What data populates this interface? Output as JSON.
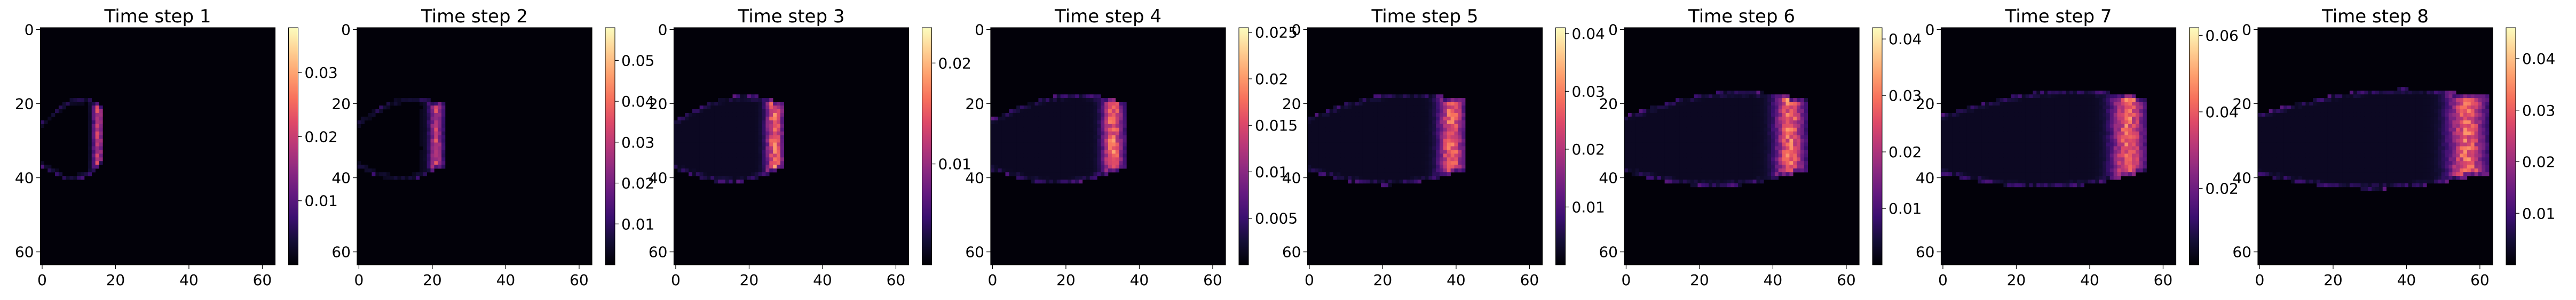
{
  "chart_data": [
    {
      "type": "heatmap",
      "title": "Time step 1",
      "x_ticks": [
        0,
        20,
        40,
        60
      ],
      "y_ticks": [
        0,
        20,
        40,
        60
      ],
      "grid_size": 64,
      "colormap": "magma",
      "colorbar_ticks": [
        0.01,
        0.02,
        0.03
      ],
      "colorbar_range": [
        0,
        0.037
      ]
    },
    {
      "type": "heatmap",
      "title": "Time step 2",
      "x_ticks": [
        0,
        20,
        40,
        60
      ],
      "y_ticks": [
        0,
        20,
        40,
        60
      ],
      "grid_size": 64,
      "colormap": "magma",
      "colorbar_ticks": [
        0.01,
        0.02,
        0.03,
        0.04,
        0.05
      ],
      "colorbar_range": [
        0,
        0.058
      ]
    },
    {
      "type": "heatmap",
      "title": "Time step 3",
      "x_ticks": [
        0,
        20,
        40,
        60
      ],
      "y_ticks": [
        0,
        20,
        40,
        60
      ],
      "grid_size": 64,
      "colormap": "magma",
      "colorbar_ticks": [
        0.01,
        0.02
      ],
      "colorbar_range": [
        0,
        0.0235
      ]
    },
    {
      "type": "heatmap",
      "title": "Time step 4",
      "x_ticks": [
        0,
        20,
        40,
        60
      ],
      "y_ticks": [
        0,
        20,
        40,
        60
      ],
      "grid_size": 64,
      "colormap": "magma",
      "colorbar_ticks": [
        0.005,
        0.01,
        0.015,
        0.02,
        0.025
      ],
      "colorbar_range": [
        0,
        0.0255
      ]
    },
    {
      "type": "heatmap",
      "title": "Time step 5",
      "x_ticks": [
        0,
        20,
        40,
        60
      ],
      "y_ticks": [
        0,
        20,
        40,
        60
      ],
      "grid_size": 64,
      "colormap": "magma",
      "colorbar_ticks": [
        0.01,
        0.02,
        0.03,
        0.04
      ],
      "colorbar_range": [
        0,
        0.041
      ]
    },
    {
      "type": "heatmap",
      "title": "Time step 6",
      "x_ticks": [
        0,
        20,
        40,
        60
      ],
      "y_ticks": [
        0,
        20,
        40,
        60
      ],
      "grid_size": 64,
      "colormap": "magma",
      "colorbar_ticks": [
        0.01,
        0.02,
        0.03,
        0.04
      ],
      "colorbar_range": [
        0,
        0.042
      ]
    },
    {
      "type": "heatmap",
      "title": "Time step 7",
      "x_ticks": [
        0,
        20,
        40,
        60
      ],
      "y_ticks": [
        0,
        20,
        40,
        60
      ],
      "grid_size": 64,
      "colormap": "magma",
      "colorbar_ticks": [
        0.02,
        0.04,
        0.06
      ],
      "colorbar_range": [
        0,
        0.062
      ]
    },
    {
      "type": "heatmap",
      "title": "Time step 8",
      "x_ticks": [
        0,
        20,
        40,
        60
      ],
      "y_ticks": [
        0,
        20,
        40,
        60
      ],
      "grid_size": 64,
      "colormap": "magma",
      "colorbar_ticks": [
        0.01,
        0.02,
        0.03,
        0.04
      ],
      "colorbar_range": [
        0,
        0.046
      ]
    }
  ],
  "colors": {
    "magma_stops": [
      "#000004",
      "#140e36",
      "#3b0f70",
      "#641a80",
      "#8c2981",
      "#b73779",
      "#de4968",
      "#f7705c",
      "#fe9f6d",
      "#fecf92",
      "#fcfdbf"
    ]
  }
}
